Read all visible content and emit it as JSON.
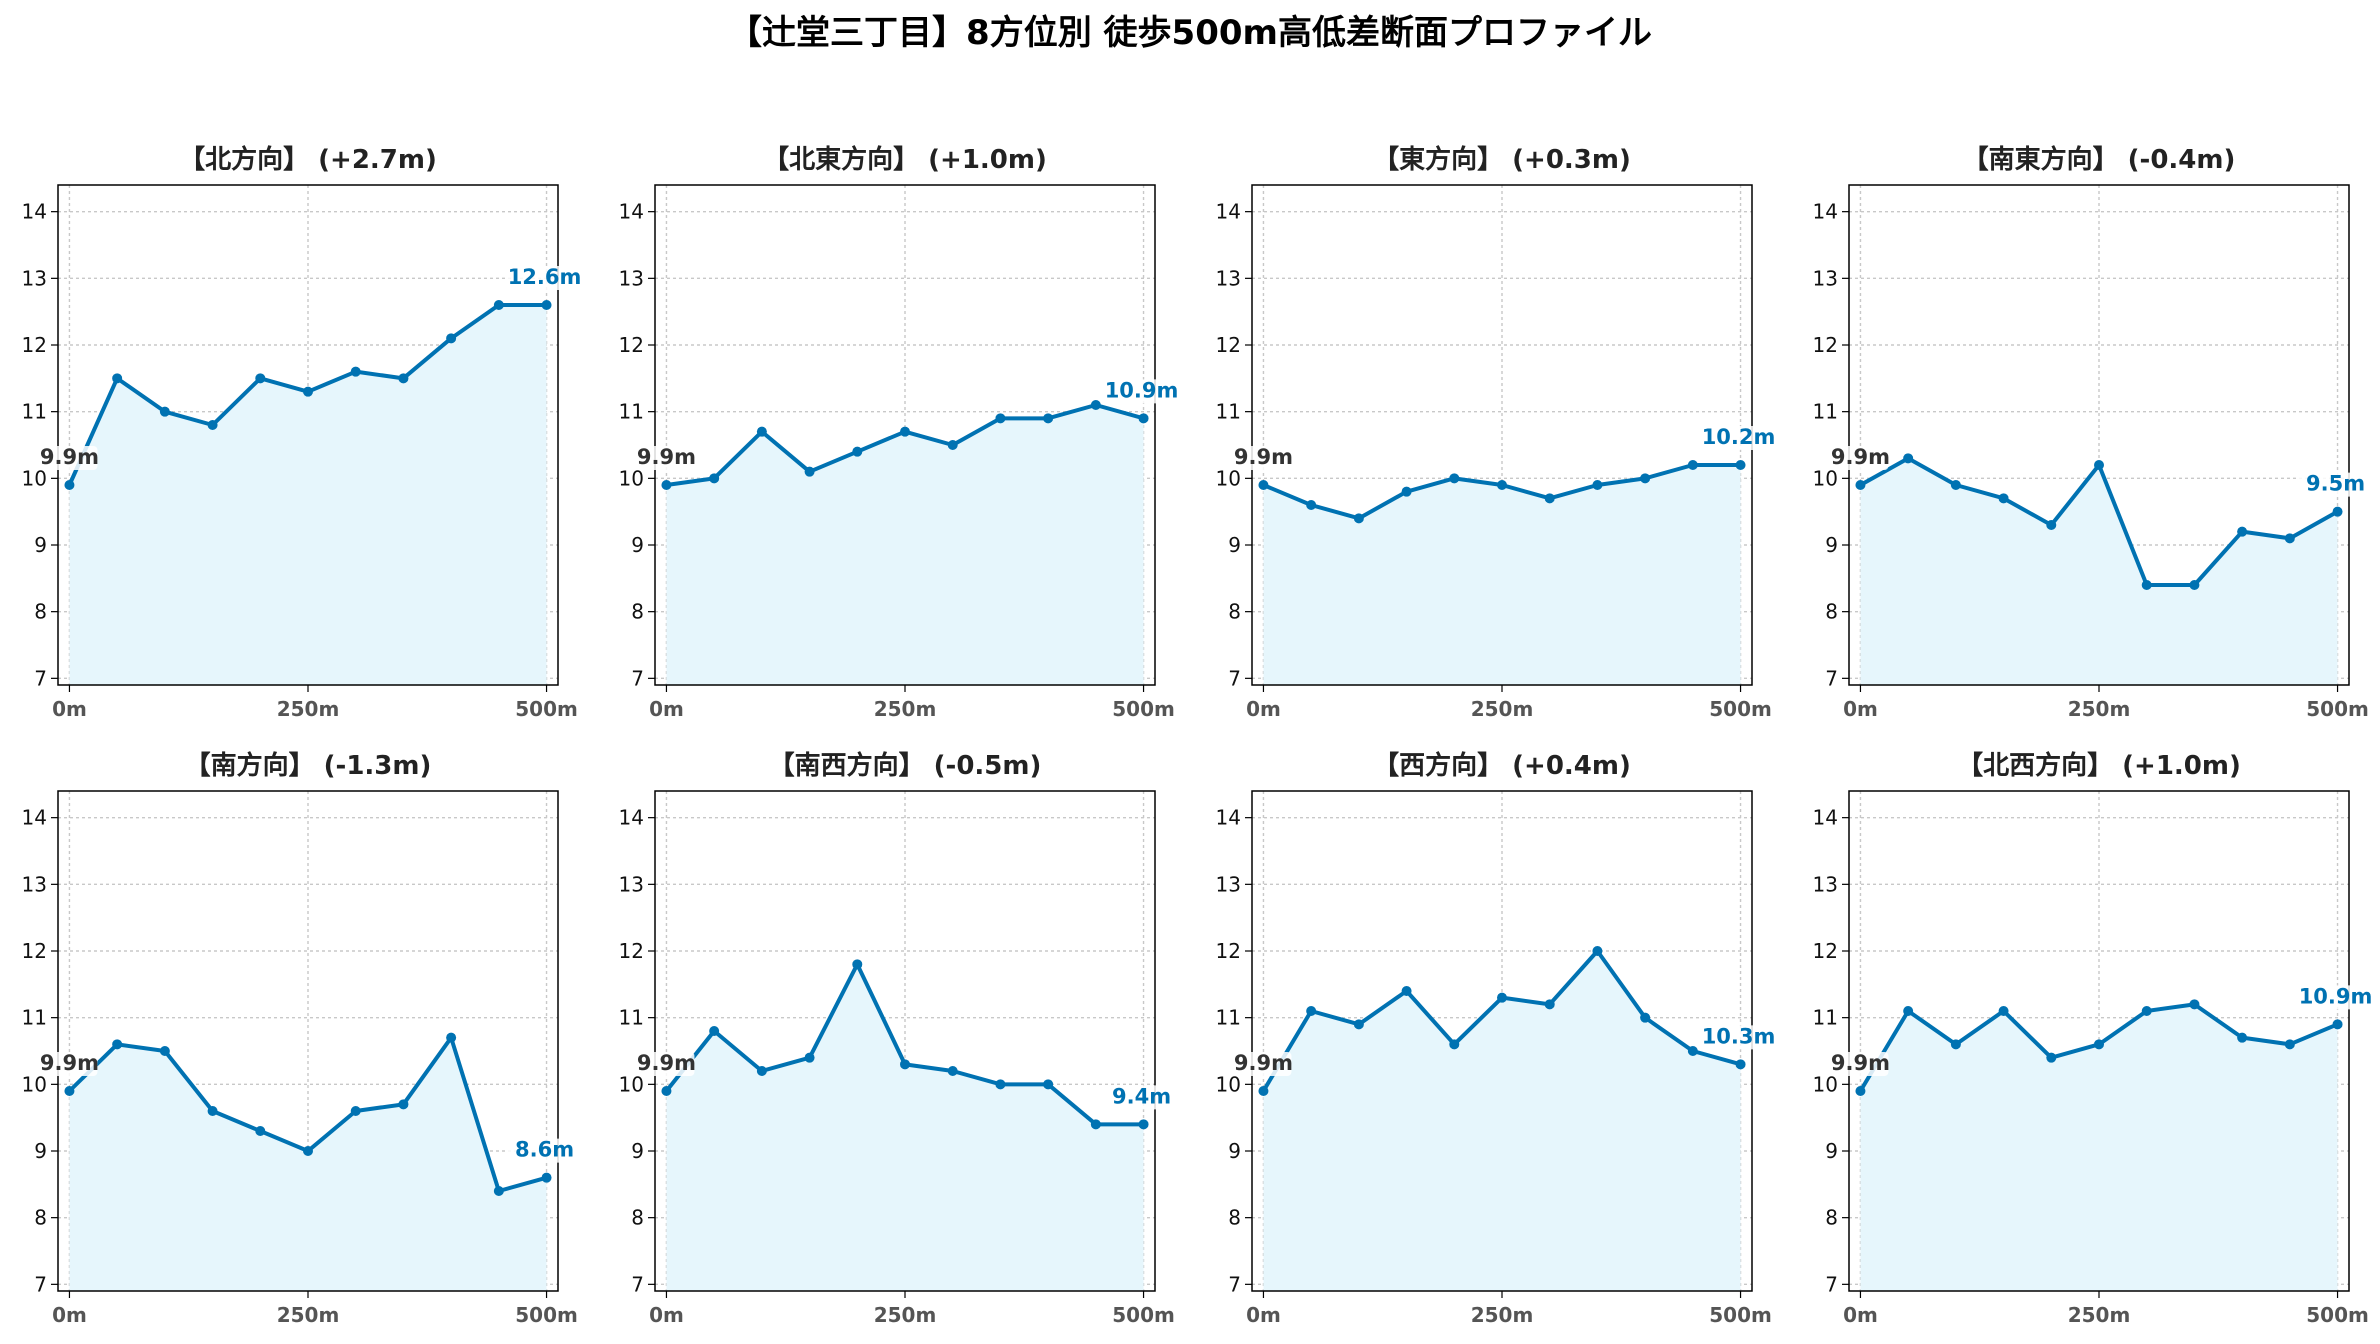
{
  "figure": {
    "title": "【辻堂三丁目】8方位別 徒歩500m高低差断面プロファイル"
  },
  "style": {
    "line_color": "#0072b2",
    "fill_color": "#e6f6fc",
    "start_label_color": "#333333",
    "grid_color": "#c8c8c8"
  },
  "chart_data": [
    {
      "type": "line",
      "title": "【北方向】 (+2.7m)",
      "x": [
        0,
        50,
        100,
        150,
        200,
        250,
        300,
        350,
        400,
        450,
        500
      ],
      "values": [
        9.9,
        11.5,
        11.0,
        10.8,
        11.5,
        11.3,
        11.6,
        11.5,
        12.1,
        12.6,
        12.6
      ],
      "start_label": "9.9m",
      "end_label": "12.6m",
      "xticks": [
        "0m",
        "250m",
        "500m"
      ],
      "yticks": [
        "7",
        "8",
        "9",
        "10",
        "11",
        "12",
        "13",
        "14"
      ],
      "xlim": [
        -12,
        512
      ],
      "ylim": [
        6.9,
        14.4
      ],
      "grid": true
    },
    {
      "type": "line",
      "title": "【北東方向】 (+1.0m)",
      "x": [
        0,
        50,
        100,
        150,
        200,
        250,
        300,
        350,
        400,
        450,
        500
      ],
      "values": [
        9.9,
        10.0,
        10.7,
        10.1,
        10.4,
        10.7,
        10.5,
        10.9,
        10.9,
        11.1,
        10.9
      ],
      "start_label": "9.9m",
      "end_label": "10.9m",
      "xticks": [
        "0m",
        "250m",
        "500m"
      ],
      "yticks": [
        "7",
        "8",
        "9",
        "10",
        "11",
        "12",
        "13",
        "14"
      ],
      "xlim": [
        -12,
        512
      ],
      "ylim": [
        6.9,
        14.4
      ],
      "grid": true
    },
    {
      "type": "line",
      "title": "【東方向】 (+0.3m)",
      "x": [
        0,
        50,
        100,
        150,
        200,
        250,
        300,
        350,
        400,
        450,
        500
      ],
      "values": [
        9.9,
        9.6,
        9.4,
        9.8,
        10.0,
        9.9,
        9.7,
        9.9,
        10.0,
        10.2,
        10.2
      ],
      "start_label": "9.9m",
      "end_label": "10.2m",
      "xticks": [
        "0m",
        "250m",
        "500m"
      ],
      "yticks": [
        "7",
        "8",
        "9",
        "10",
        "11",
        "12",
        "13",
        "14"
      ],
      "xlim": [
        -12,
        512
      ],
      "ylim": [
        6.9,
        14.4
      ],
      "grid": true
    },
    {
      "type": "line",
      "title": "【南東方向】 (-0.4m)",
      "x": [
        0,
        50,
        100,
        150,
        200,
        250,
        300,
        350,
        400,
        450,
        500
      ],
      "values": [
        9.9,
        10.3,
        9.9,
        9.7,
        9.3,
        10.2,
        8.4,
        8.4,
        9.2,
        9.1,
        9.5
      ],
      "start_label": "9.9m",
      "end_label": "9.5m",
      "xticks": [
        "0m",
        "250m",
        "500m"
      ],
      "yticks": [
        "7",
        "8",
        "9",
        "10",
        "11",
        "12",
        "13",
        "14"
      ],
      "xlim": [
        -12,
        512
      ],
      "ylim": [
        6.9,
        14.4
      ],
      "grid": true
    },
    {
      "type": "line",
      "title": "【南方向】 (-1.3m)",
      "x": [
        0,
        50,
        100,
        150,
        200,
        250,
        300,
        350,
        400,
        450,
        500
      ],
      "values": [
        9.9,
        10.6,
        10.5,
        9.6,
        9.3,
        9.0,
        9.6,
        9.7,
        10.7,
        8.4,
        8.6
      ],
      "start_label": "9.9m",
      "end_label": "8.6m",
      "xticks": [
        "0m",
        "250m",
        "500m"
      ],
      "yticks": [
        "7",
        "8",
        "9",
        "10",
        "11",
        "12",
        "13",
        "14"
      ],
      "xlim": [
        -12,
        512
      ],
      "ylim": [
        6.9,
        14.4
      ],
      "grid": true
    },
    {
      "type": "line",
      "title": "【南西方向】 (-0.5m)",
      "x": [
        0,
        50,
        100,
        150,
        200,
        250,
        300,
        350,
        400,
        450,
        500
      ],
      "values": [
        9.9,
        10.8,
        10.2,
        10.4,
        11.8,
        10.3,
        10.2,
        10.0,
        10.0,
        9.4,
        9.4
      ],
      "start_label": "9.9m",
      "end_label": "9.4m",
      "xticks": [
        "0m",
        "250m",
        "500m"
      ],
      "yticks": [
        "7",
        "8",
        "9",
        "10",
        "11",
        "12",
        "13",
        "14"
      ],
      "xlim": [
        -12,
        512
      ],
      "ylim": [
        6.9,
        14.4
      ],
      "grid": true
    },
    {
      "type": "line",
      "title": "【西方向】 (+0.4m)",
      "x": [
        0,
        50,
        100,
        150,
        200,
        250,
        300,
        350,
        400,
        450,
        500
      ],
      "values": [
        9.9,
        11.1,
        10.9,
        11.4,
        10.6,
        11.3,
        11.2,
        12.0,
        11.0,
        10.5,
        10.3
      ],
      "start_label": "9.9m",
      "end_label": "10.3m",
      "xticks": [
        "0m",
        "250m",
        "500m"
      ],
      "yticks": [
        "7",
        "8",
        "9",
        "10",
        "11",
        "12",
        "13",
        "14"
      ],
      "xlim": [
        -12,
        512
      ],
      "ylim": [
        6.9,
        14.4
      ],
      "grid": true
    },
    {
      "type": "line",
      "title": "【北西方向】 (+1.0m)",
      "x": [
        0,
        50,
        100,
        150,
        200,
        250,
        300,
        350,
        400,
        450,
        500
      ],
      "values": [
        9.9,
        11.1,
        10.6,
        11.1,
        10.4,
        10.6,
        11.1,
        11.2,
        10.7,
        10.6,
        10.9
      ],
      "start_label": "9.9m",
      "end_label": "10.9m",
      "xticks": [
        "0m",
        "250m",
        "500m"
      ],
      "yticks": [
        "7",
        "8",
        "9",
        "10",
        "11",
        "12",
        "13",
        "14"
      ],
      "xlim": [
        -12,
        512
      ],
      "ylim": [
        6.9,
        14.4
      ],
      "grid": true
    }
  ]
}
